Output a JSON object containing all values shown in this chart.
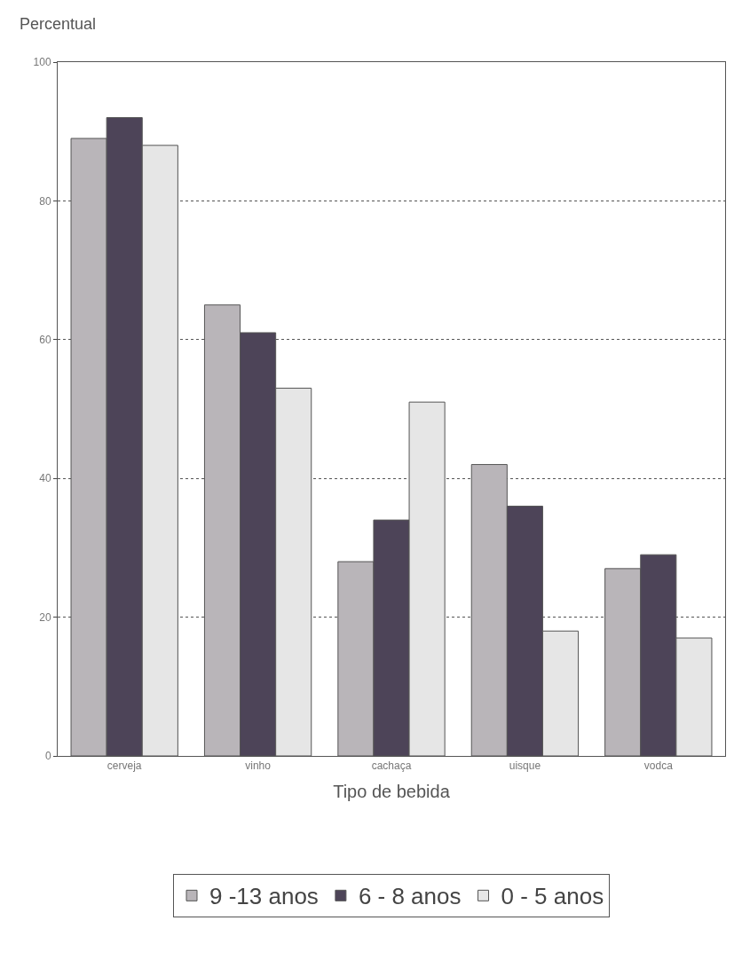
{
  "chart_data": {
    "type": "bar",
    "ylabel": "Percentual",
    "xlabel": "Tipo de bebida",
    "categories": [
      "cerveja",
      "vinho",
      "cachaça",
      "uisque",
      "vodca"
    ],
    "series": [
      {
        "name": "9 -13 anos",
        "color": "#b9b5b9",
        "values": [
          89,
          65,
          28,
          42,
          27
        ]
      },
      {
        "name": "6 - 8 anos",
        "color": "#4d4458",
        "values": [
          92,
          61,
          34,
          36,
          29
        ]
      },
      {
        "name": "0 - 5 anos",
        "color": "#e6e6e6",
        "values": [
          88,
          53,
          51,
          18,
          17
        ]
      }
    ],
    "ylim": [
      0,
      100
    ],
    "yticks": [
      0,
      20,
      40,
      60,
      80,
      100
    ],
    "grid": "y",
    "legend": "bottom"
  }
}
